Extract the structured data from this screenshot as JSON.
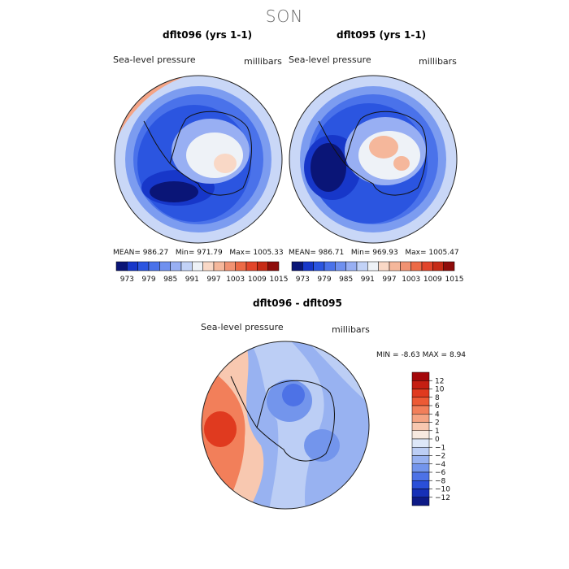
{
  "season": "SON",
  "panels": [
    {
      "title": "dflt096 (yrs 1-1)",
      "variable": "Sea-level pressure",
      "units": "millibars",
      "mean_label": "MEAN=",
      "mean": "986.27",
      "min_label": "Min=",
      "min": "971.79",
      "max_label": "Max=",
      "max": "1005.33"
    },
    {
      "title": "dflt095 (yrs 1-1)",
      "variable": "Sea-level pressure",
      "units": "millibars",
      "mean_label": "MEAN=",
      "mean": "986.71",
      "min_label": "Min=",
      "min": "969.93",
      "max_label": "Max=",
      "max": "1005.47"
    }
  ],
  "diff_panel": {
    "title": "dflt096 - dflt095",
    "variable": "Sea-level pressure",
    "units": "millibars",
    "min_label": "MIN =",
    "min": "-8.63",
    "max_label": "MAX =",
    "max": "8.94"
  },
  "chart_data": [
    {
      "type": "heatmap",
      "title": "dflt096 (yrs 1-1)",
      "subtitle": "Sea-level pressure",
      "units": "millibars",
      "projection": "south polar stereographic",
      "stats": {
        "mean": 986.27,
        "min": 971.79,
        "max": 1005.33
      },
      "colorbar_levels": [
        973,
        979,
        985,
        991,
        997,
        1003,
        1009,
        1015
      ],
      "colorbar_colors": [
        "#0a1577",
        "#1737c9",
        "#2b55e0",
        "#4a72ea",
        "#6f90ef",
        "#98aff3",
        "#c2d2f7",
        "#eef2f7",
        "#f9d8c6",
        "#f5b79b",
        "#f19272",
        "#ec6a46",
        "#e2452a",
        "#c62b16",
        "#8e0c0a"
      ]
    },
    {
      "type": "heatmap",
      "title": "dflt095 (yrs 1-1)",
      "subtitle": "Sea-level pressure",
      "units": "millibars",
      "projection": "south polar stereographic",
      "stats": {
        "mean": 986.71,
        "min": 969.93,
        "max": 1005.47
      },
      "colorbar_levels": [
        973,
        979,
        985,
        991,
        997,
        1003,
        1009,
        1015
      ],
      "colorbar_colors": [
        "#0a1577",
        "#1737c9",
        "#2b55e0",
        "#4a72ea",
        "#6f90ef",
        "#98aff3",
        "#c2d2f7",
        "#eef2f7",
        "#f9d8c6",
        "#f5b79b",
        "#f19272",
        "#ec6a46",
        "#e2452a",
        "#c62b16",
        "#8e0c0a"
      ]
    },
    {
      "type": "heatmap",
      "title": "dflt096 - dflt095",
      "subtitle": "Sea-level pressure",
      "units": "millibars",
      "projection": "south polar stereographic",
      "stats": {
        "min": -8.63,
        "max": 8.94
      },
      "colorbar_levels": [
        "12",
        "10",
        "8",
        "6",
        "4",
        "2",
        "1",
        "0",
        "−1",
        "−2",
        "−4",
        "−6",
        "−8",
        "−10",
        "−12"
      ],
      "colorbar_colors": [
        "#a4080a",
        "#c51e12",
        "#e03a1f",
        "#ed5a35",
        "#f27f5a",
        "#f5a483",
        "#f8c8b0",
        "#f7e9df",
        "#dde7f8",
        "#bccef5",
        "#98b2f1",
        "#7395ec",
        "#4d72e6",
        "#2a4fd8",
        "#1630b7",
        "#0d1a86"
      ]
    }
  ]
}
